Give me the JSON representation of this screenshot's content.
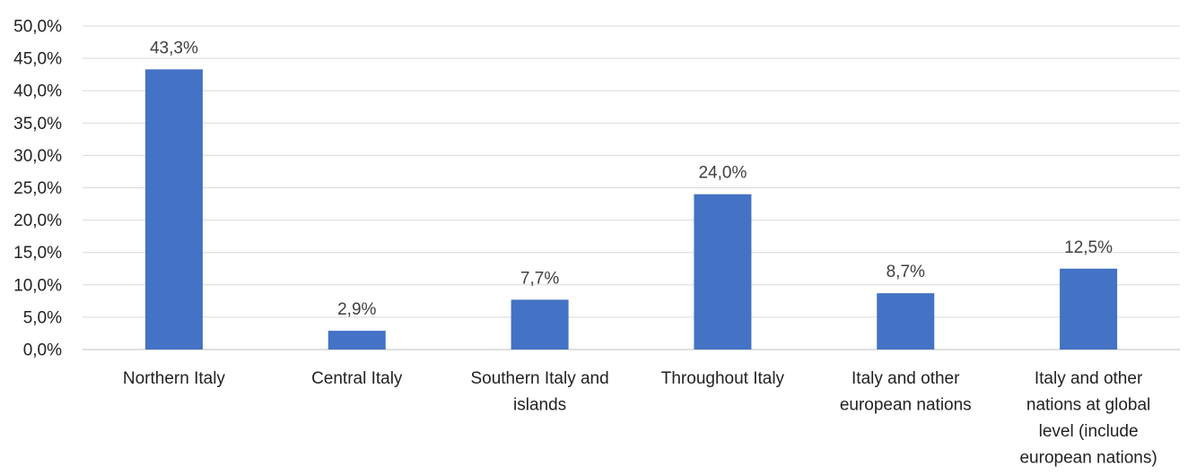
{
  "chart_data": {
    "type": "bar",
    "categories": [
      [
        "Northern Italy"
      ],
      [
        "Central Italy"
      ],
      [
        "Southern Italy and",
        "islands"
      ],
      [
        "Throughout Italy"
      ],
      [
        "Italy and other",
        "european nations"
      ],
      [
        "Italy and other",
        "nations at global",
        "level (include",
        "european nations)"
      ]
    ],
    "values": [
      43.3,
      2.9,
      7.7,
      24.0,
      8.7,
      12.5
    ],
    "data_labels": [
      "43,3%",
      "2,9%",
      "7,7%",
      "24,0%",
      "8,7%",
      "12,5%"
    ],
    "y_ticks": [
      "0,0%",
      "5,0%",
      "10,0%",
      "15,0%",
      "20,0%",
      "25,0%",
      "30,0%",
      "35,0%",
      "40,0%",
      "45,0%",
      "50,0%"
    ],
    "ylim": [
      0,
      50
    ],
    "y_step": 5,
    "grid": true,
    "legend": "none",
    "bar_color": "#4472c4"
  }
}
